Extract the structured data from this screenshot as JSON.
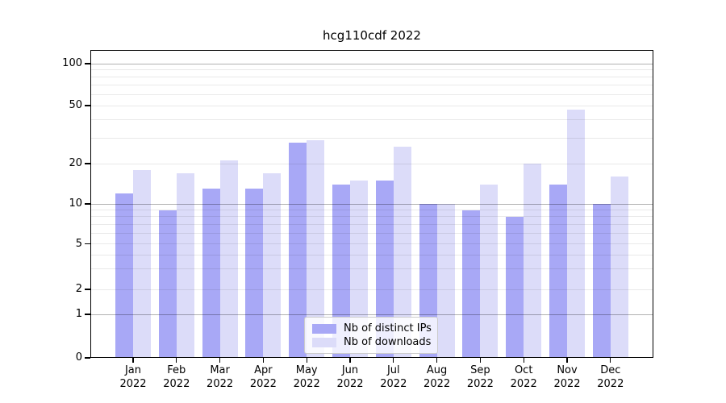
{
  "title": "hcg110cdf 2022",
  "chart_data": {
    "type": "bar",
    "title": "hcg110cdf 2022",
    "categories": [
      "Jan",
      "Feb",
      "Mar",
      "Apr",
      "May",
      "Jun",
      "Jul",
      "Aug",
      "Sep",
      "Oct",
      "Nov",
      "Dec"
    ],
    "category_year": "2022",
    "series": [
      {
        "name": "Nb of distinct IPs",
        "color": "#a8a8f6",
        "values": [
          12,
          9,
          13,
          13,
          28,
          14,
          15,
          10,
          9,
          8,
          14,
          10
        ]
      },
      {
        "name": "Nb of downloads",
        "color": "#dcdcf9",
        "values": [
          18,
          17,
          21,
          17,
          29,
          15,
          26,
          10,
          14,
          20,
          47,
          16
        ]
      }
    ],
    "y_axis": {
      "scale": "log-like",
      "tick_values": [
        100,
        50,
        20,
        10,
        5,
        2,
        1,
        0
      ],
      "ylim": [
        0,
        100
      ]
    },
    "legend": {
      "entries": [
        "Nb of distinct IPs",
        "Nb of downloads"
      ],
      "position": "lower center-right"
    },
    "grid": "horizontal major (1,10,100) and minor log lines"
  }
}
